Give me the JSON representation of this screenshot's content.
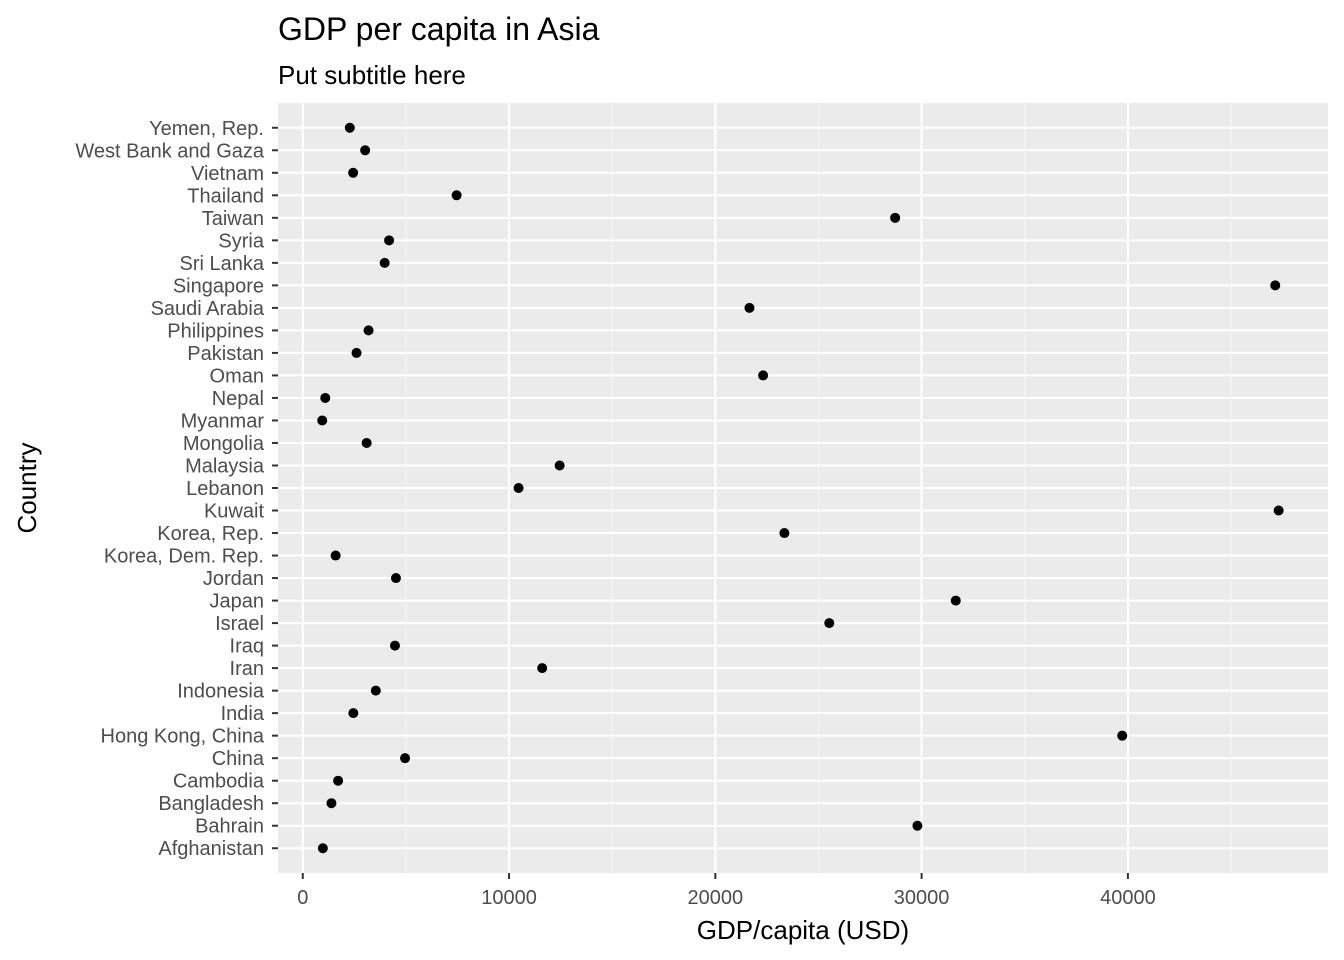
{
  "chart_data": {
    "type": "scatter",
    "title": "GDP per capita in Asia",
    "subtitle": "Put subtitle here",
    "xlabel": "GDP/capita (USD)",
    "ylabel": "Country",
    "xlim": [
      -1200,
      49700
    ],
    "x_ticks": [
      0,
      10000,
      20000,
      30000,
      40000
    ],
    "x_tick_labels": [
      "0",
      "10000",
      "20000",
      "30000",
      "40000"
    ],
    "grid": true,
    "legend": "none",
    "categories": [
      "Afghanistan",
      "Bahrain",
      "Bangladesh",
      "Cambodia",
      "China",
      "Hong Kong, China",
      "India",
      "Indonesia",
      "Iran",
      "Iraq",
      "Israel",
      "Japan",
      "Jordan",
      "Korea, Dem. Rep.",
      "Korea, Rep.",
      "Kuwait",
      "Lebanon",
      "Malaysia",
      "Mongolia",
      "Myanmar",
      "Nepal",
      "Oman",
      "Pakistan",
      "Philippines",
      "Saudi Arabia",
      "Singapore",
      "Sri Lanka",
      "Syria",
      "Taiwan",
      "Thailand",
      "Vietnam",
      "West Bank and Gaza",
      "Yemen, Rep."
    ],
    "values": [
      974,
      29796,
      1391,
      1714,
      4959,
      39725,
      2452,
      3541,
      11606,
      4471,
      25523,
      31656,
      4519,
      1593,
      23348,
      47307,
      10461,
      12452,
      3096,
      944,
      1091,
      22316,
      2606,
      3190,
      21655,
      47143,
      3970,
      4185,
      28718,
      7458,
      2442,
      3025,
      2281
    ],
    "colors": {
      "panel": "#ebebeb",
      "grid_major": "#ffffff",
      "grid_minor": "#f5f5f5",
      "point": "#000000"
    }
  }
}
